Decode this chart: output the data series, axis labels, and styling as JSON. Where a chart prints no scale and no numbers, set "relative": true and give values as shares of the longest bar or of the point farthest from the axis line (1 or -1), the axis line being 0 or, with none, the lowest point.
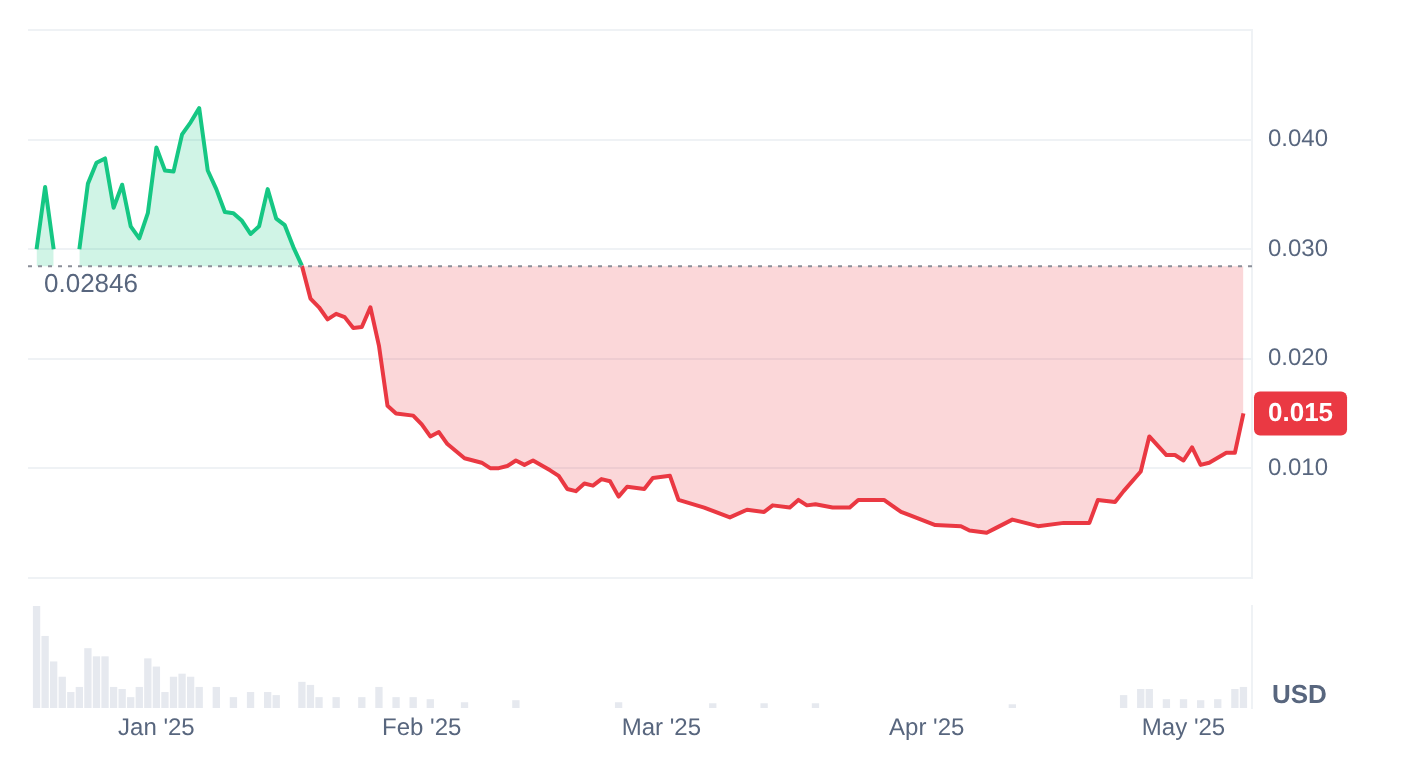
{
  "chart_data": [
    {
      "type": "line",
      "tick_labels": "y",
      "grid": "y",
      "xlim": [
        "2024-12-17",
        "2025-05-09"
      ],
      "xticks": [
        {
          "value": "2025-01-01",
          "label": null
        },
        {
          "value": "2025-02-01",
          "label": null
        },
        {
          "value": "2025-03-01",
          "label": null
        },
        {
          "value": "2025-04-01",
          "label": null
        },
        {
          "value": "2025-05-01",
          "label": null
        }
      ],
      "ylim": [
        0,
        0.05
      ],
      "yticks": [
        {
          "value": 0,
          "label": null
        },
        {
          "value": 0.01,
          "label": "0.010"
        },
        {
          "value": 0.02,
          "label": "0.020"
        },
        {
          "value": 0.03,
          "label": "0.030"
        },
        {
          "value": 0.04,
          "label": "0.040"
        },
        {
          "value": 0.05,
          "label": null
        }
      ],
      "ref_lines": [
        {
          "axis": "y",
          "value": 0.02846,
          "label": "0.02846",
          "line_style": "dotted",
          "color": "#8a8f99"
        }
      ],
      "annotations": [
        "0.015"
      ],
      "series": [
        {
          "color": "#16c784",
          "x": [
            "2024-12-18",
            "2024-12-19",
            "2024-12-20",
            "2024-12-22",
            "2024-12-23",
            "2024-12-24",
            "2024-12-25",
            "2024-12-26",
            "2024-12-27",
            "2024-12-28",
            "2024-12-29",
            "2024-12-30",
            "2024-12-31",
            "2025-01-01",
            "2025-01-02",
            "2025-01-03",
            "2025-01-04",
            "2025-01-05",
            "2025-01-06",
            "2025-01-07",
            "2025-01-08",
            "2025-01-09",
            "2025-01-10",
            "2025-01-11",
            "2025-01-12",
            "2025-01-13",
            "2025-01-14",
            "2025-01-15",
            "2025-01-16",
            "2025-01-17",
            "2025-01-18"
          ],
          "values": [
            0.03,
            0.0357,
            0.03,
            null,
            0.03,
            0.036,
            0.0379,
            0.0383,
            0.0338,
            0.0359,
            0.0321,
            0.031,
            0.0333,
            0.0393,
            0.0372,
            0.0371,
            0.0405,
            0.0416,
            0.0429,
            0.0372,
            0.0355,
            0.0334,
            0.0333,
            0.0326,
            0.0314,
            0.0321,
            0.0355,
            0.0328,
            0.0322,
            0.0302,
            0.0285
          ],
          "lower": [
            0.02846,
            0.02846,
            0.02846,
            null,
            0.02846,
            0.02846,
            0.02846,
            0.02846,
            0.02846,
            0.02846,
            0.02846,
            0.02846,
            0.02846,
            0.02846,
            0.02846,
            0.02846,
            0.02846,
            0.02846,
            0.02846,
            0.02846,
            0.02846,
            0.02846,
            0.02846,
            0.02846,
            0.02846,
            0.02846,
            0.02846,
            0.02846,
            0.02846,
            0.02846,
            0.02846
          ],
          "upper": [
            0.03,
            0.0357,
            0.03,
            null,
            0.03,
            0.036,
            0.0379,
            0.0383,
            0.0338,
            0.0359,
            0.0321,
            0.031,
            0.0333,
            0.0393,
            0.0372,
            0.0371,
            0.0405,
            0.0416,
            0.0429,
            0.0372,
            0.0355,
            0.0334,
            0.0333,
            0.0326,
            0.0314,
            0.0321,
            0.0355,
            0.0328,
            0.0322,
            0.0302,
            0.0285
          ]
        },
        {
          "color": "#ea3943",
          "x": [
            "2025-01-18",
            "2025-01-19",
            "2025-01-20",
            "2025-01-21",
            "2025-01-22",
            "2025-01-23",
            "2025-01-24",
            "2025-01-25",
            "2025-01-26",
            "2025-01-27",
            "2025-01-28",
            "2025-01-29",
            "2025-01-31",
            "2025-02-01",
            "2025-02-02",
            "2025-02-03",
            "2025-02-04",
            "2025-02-06",
            "2025-02-08",
            "2025-02-09",
            "2025-02-10",
            "2025-02-11",
            "2025-02-12",
            "2025-02-13",
            "2025-02-14",
            "2025-02-16",
            "2025-02-17",
            "2025-02-18",
            "2025-02-19",
            "2025-02-20",
            "2025-02-21",
            "2025-02-22",
            "2025-02-23",
            "2025-02-24",
            "2025-02-25",
            "2025-02-27",
            "2025-02-28",
            "2025-03-02",
            "2025-03-03",
            "2025-03-06",
            "2025-03-09",
            "2025-03-11",
            "2025-03-13",
            "2025-03-14",
            "2025-03-16",
            "2025-03-17",
            "2025-03-18",
            "2025-03-19",
            "2025-03-21",
            "2025-03-23",
            "2025-03-24",
            "2025-03-27",
            "2025-03-29",
            "2025-03-30",
            "2025-04-02",
            "2025-04-05",
            "2025-04-06",
            "2025-04-08",
            "2025-04-09",
            "2025-04-11",
            "2025-04-14",
            "2025-04-17",
            "2025-04-20",
            "2025-04-21",
            "2025-04-23",
            "2025-04-24",
            "2025-04-26",
            "2025-04-27",
            "2025-04-29",
            "2025-04-30",
            "2025-05-01",
            "2025-05-02",
            "2025-05-03",
            "2025-05-04",
            "2025-05-06",
            "2025-05-07",
            "2025-05-08"
          ],
          "values": [
            0.0285,
            0.0255,
            0.0247,
            0.0236,
            0.0241,
            0.0238,
            0.0228,
            0.0229,
            0.0247,
            0.0212,
            0.0157,
            0.015,
            0.0148,
            0.014,
            0.0129,
            0.0133,
            0.0122,
            0.0109,
            0.0105,
            0.01,
            0.01,
            0.0102,
            0.0107,
            0.0103,
            0.0107,
            0.0098,
            0.0093,
            0.0081,
            0.0079,
            0.0086,
            0.0084,
            0.009,
            0.0088,
            0.0074,
            0.0083,
            0.0081,
            0.0091,
            0.0093,
            0.0071,
            0.0064,
            0.0055,
            0.0062,
            0.006,
            0.0066,
            0.0064,
            0.0071,
            0.0066,
            0.0067,
            0.0064,
            0.0064,
            0.0071,
            0.0071,
            0.006,
            0.0057,
            0.0048,
            0.0047,
            0.0043,
            0.0041,
            0.0045,
            0.0053,
            0.0047,
            0.005,
            0.005,
            0.0071,
            0.0069,
            0.0079,
            0.0097,
            0.0129,
            0.0112,
            0.0112,
            0.0107,
            0.0119,
            0.0103,
            0.0105,
            0.0114,
            0.0114,
            0.015
          ],
          "lower": [
            0.0285,
            0.0255,
            0.0247,
            0.0236,
            0.0241,
            0.0238,
            0.0228,
            0.0229,
            0.0247,
            0.0212,
            0.0157,
            0.015,
            0.0148,
            0.014,
            0.0129,
            0.0133,
            0.0122,
            0.0109,
            0.0105,
            0.01,
            0.01,
            0.0102,
            0.0107,
            0.0103,
            0.0107,
            0.0098,
            0.0093,
            0.0081,
            0.0079,
            0.0086,
            0.0084,
            0.009,
            0.0088,
            0.0074,
            0.0083,
            0.0081,
            0.0091,
            0.0093,
            0.0071,
            0.0064,
            0.0055,
            0.0062,
            0.006,
            0.0066,
            0.0064,
            0.0071,
            0.0066,
            0.0067,
            0.0064,
            0.0064,
            0.0071,
            0.0071,
            0.006,
            0.0057,
            0.0048,
            0.0047,
            0.0043,
            0.0041,
            0.0045,
            0.0053,
            0.0047,
            0.005,
            0.005,
            0.0071,
            0.0069,
            0.0079,
            0.0097,
            0.0129,
            0.0112,
            0.0112,
            0.0107,
            0.0119,
            0.0103,
            0.0105,
            0.0114,
            0.0114,
            0.015
          ],
          "upper": [
            0.02846,
            0.02846,
            0.02846,
            0.02846,
            0.02846,
            0.02846,
            0.02846,
            0.02846,
            0.02846,
            0.02846,
            0.02846,
            0.02846,
            0.02846,
            0.02846,
            0.02846,
            0.02846,
            0.02846,
            0.02846,
            0.02846,
            0.02846,
            0.02846,
            0.02846,
            0.02846,
            0.02846,
            0.02846,
            0.02846,
            0.02846,
            0.02846,
            0.02846,
            0.02846,
            0.02846,
            0.02846,
            0.02846,
            0.02846,
            0.02846,
            0.02846,
            0.02846,
            0.02846,
            0.02846,
            0.02846,
            0.02846,
            0.02846,
            0.02846,
            0.02846,
            0.02846,
            0.02846,
            0.02846,
            0.02846,
            0.02846,
            0.02846,
            0.02846,
            0.02846,
            0.02846,
            0.02846,
            0.02846,
            0.02846,
            0.02846,
            0.02846,
            0.02846,
            0.02846,
            0.02846,
            0.02846,
            0.02846,
            0.02846,
            0.02846,
            0.02846,
            0.02846,
            0.02846,
            0.02846,
            0.02846,
            0.02846,
            0.02846,
            0.02846,
            0.02846,
            0.02846,
            0.02846,
            0.02846
          ]
        }
      ]
    },
    {
      "type": "bar",
      "relative": true,
      "tick_labels": "x",
      "ylabel": "USD",
      "color": "#e6e9ef",
      "xlim": [
        "2024-12-17",
        "2025-05-09"
      ],
      "xticks": [
        {
          "value": "2025-01-01",
          "label": "Jan '25"
        },
        {
          "value": "2025-02-01",
          "label": "Feb '25"
        },
        {
          "value": "2025-03-01",
          "label": "Mar '25"
        },
        {
          "value": "2025-04-01",
          "label": "Apr '25"
        },
        {
          "value": "2025-05-01",
          "label": "May '25"
        }
      ],
      "x": [
        "2024-12-18",
        "2024-12-19",
        "2024-12-20",
        "2024-12-21",
        "2024-12-22",
        "2024-12-23",
        "2024-12-24",
        "2024-12-25",
        "2024-12-26",
        "2024-12-27",
        "2024-12-28",
        "2024-12-29",
        "2024-12-30",
        "2024-12-31",
        "2025-01-01",
        "2025-01-02",
        "2025-01-03",
        "2025-01-04",
        "2025-01-05",
        "2025-01-06",
        "2025-01-08",
        "2025-01-10",
        "2025-01-12",
        "2025-01-14",
        "2025-01-15",
        "2025-01-18",
        "2025-01-19",
        "2025-01-20",
        "2025-01-22",
        "2025-01-25",
        "2025-01-27",
        "2025-01-29",
        "2025-01-31",
        "2025-02-02",
        "2025-02-06",
        "2025-02-12",
        "2025-02-24",
        "2025-03-07",
        "2025-03-13",
        "2025-03-19",
        "2025-04-11",
        "2025-04-24",
        "2025-04-26",
        "2025-04-27",
        "2025-04-29",
        "2025-05-01",
        "2025-05-03",
        "2025-05-05",
        "2025-05-07",
        "2025-05-08"
      ],
      "values": [
        1,
        0.7,
        0.45,
        0.3,
        0.15,
        0.2,
        0.58,
        0.5,
        0.5,
        0.2,
        0.18,
        0.1,
        0.2,
        0.48,
        0.4,
        0.15,
        0.3,
        0.33,
        0.3,
        0.2,
        0.2,
        0.1,
        0.15,
        0.15,
        0.12,
        0.25,
        0.22,
        0.1,
        0.1,
        0.1,
        0.2,
        0.1,
        0.1,
        0.08,
        0.05,
        0.07,
        0.05,
        0.04,
        0.04,
        0.04,
        0.03,
        0.12,
        0.18,
        0.18,
        0.08,
        0.08,
        0.07,
        0.08,
        0.18,
        0.2
      ]
    }
  ]
}
